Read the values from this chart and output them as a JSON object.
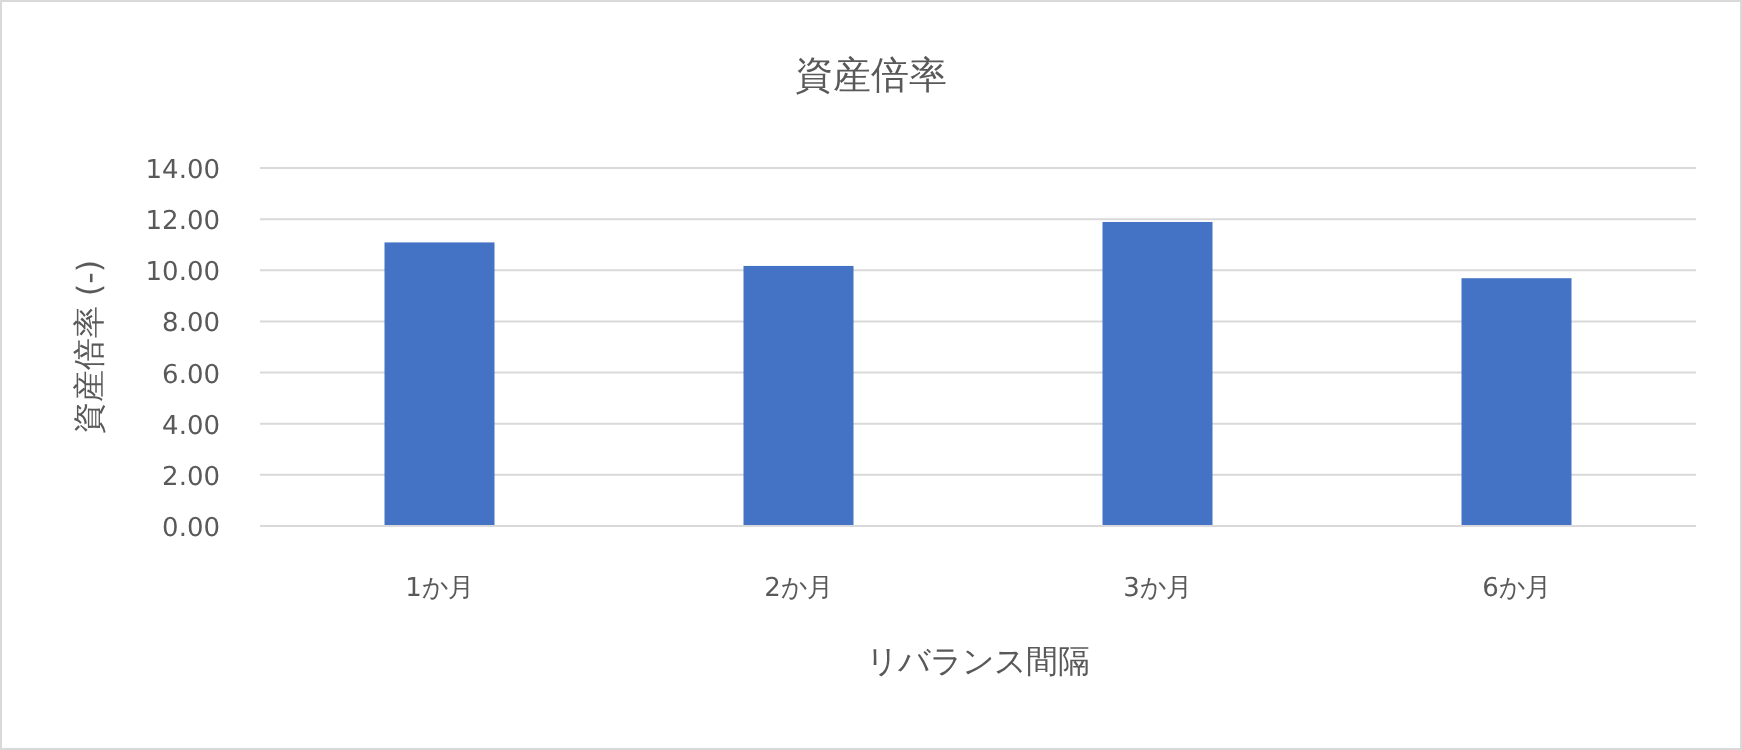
{
  "chart_data": {
    "type": "bar",
    "title": "資産倍率",
    "xlabel": "リバランス間隔",
    "ylabel": "資産倍率 (-)",
    "categories": [
      "1か月",
      "2か月",
      "3か月",
      "6か月"
    ],
    "values": [
      11.09,
      10.17,
      11.89,
      9.69
    ],
    "color": "#4472c4",
    "ylim": [
      0,
      14
    ],
    "yticks": [
      {
        "value": 0,
        "label": "0.00"
      },
      {
        "value": 2,
        "label": "2.00"
      },
      {
        "value": 4,
        "label": "4.00"
      },
      {
        "value": 6,
        "label": "6.00"
      },
      {
        "value": 8,
        "label": "8.00"
      },
      {
        "value": 10,
        "label": "10.00"
      },
      {
        "value": 12,
        "label": "12.00"
      },
      {
        "value": 14,
        "label": "14.00"
      }
    ],
    "grid": "y"
  }
}
